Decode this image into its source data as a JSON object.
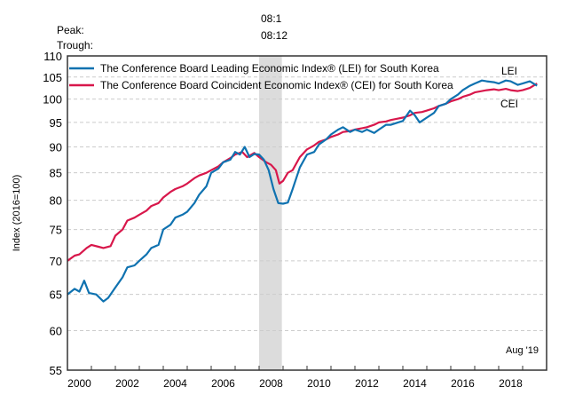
{
  "chart_data": {
    "type": "line",
    "title": "",
    "xlabel": "",
    "ylabel": "Index (2016=100)",
    "y_scale": "log",
    "ylim": [
      55,
      110
    ],
    "xlim": [
      2000,
      2020
    ],
    "grid": true,
    "yticks": [
      55,
      60,
      65,
      70,
      75,
      80,
      85,
      90,
      95,
      100,
      105,
      110
    ],
    "xticks": [
      "2000",
      "2002",
      "2004",
      "2006",
      "2008",
      "2010",
      "2012",
      "2014",
      "2016",
      "2018"
    ],
    "legend_position": "top-left",
    "recession": {
      "peak_label": "Peak:",
      "trough_label": "Trough:",
      "peak": "08:1",
      "trough": "08:12",
      "start": 2008.0,
      "end": 2008.95
    },
    "annotations": {
      "lei_label": "LEI",
      "cei_label": "CEI",
      "date_stamp": "Aug '19"
    },
    "series": [
      {
        "name": "The Conference Board Leading Economic Index® (LEI) for South Korea",
        "short": "LEI",
        "color": "#0f72b0",
        "x": [
          2000.0,
          2000.3,
          2000.5,
          2000.7,
          2000.9,
          2001.2,
          2001.5,
          2001.7,
          2002.0,
          2002.3,
          2002.5,
          2002.8,
          2003.0,
          2003.3,
          2003.5,
          2003.8,
          2004.0,
          2004.3,
          2004.5,
          2004.8,
          2005.0,
          2005.3,
          2005.5,
          2005.8,
          2006.0,
          2006.3,
          2006.5,
          2006.8,
          2007.0,
          2007.2,
          2007.4,
          2007.6,
          2007.8,
          2008.0,
          2008.2,
          2008.4,
          2008.6,
          2008.8,
          2009.0,
          2009.2,
          2009.4,
          2009.7,
          2010.0,
          2010.3,
          2010.5,
          2010.8,
          2011.0,
          2011.3,
          2011.5,
          2011.8,
          2012.0,
          2012.3,
          2012.5,
          2012.8,
          2013.0,
          2013.3,
          2013.5,
          2013.8,
          2014.0,
          2014.3,
          2014.5,
          2014.7,
          2015.0,
          2015.3,
          2015.5,
          2015.8,
          2016.0,
          2016.3,
          2016.5,
          2016.8,
          2017.0,
          2017.3,
          2017.5,
          2017.8,
          2018.0,
          2018.3,
          2018.5,
          2018.8,
          2019.0,
          2019.3,
          2019.6
        ],
        "values": [
          65.0,
          65.8,
          65.4,
          67.0,
          65.2,
          65.0,
          64.0,
          64.5,
          66.0,
          67.5,
          69.0,
          69.3,
          70.0,
          71.0,
          72.0,
          72.5,
          75.0,
          75.8,
          77.0,
          77.5,
          78.0,
          79.5,
          81.0,
          82.5,
          85.0,
          85.8,
          87.0,
          87.5,
          89.0,
          88.5,
          90.0,
          88.0,
          88.6,
          88.5,
          87.5,
          85.5,
          82.0,
          79.5,
          79.4,
          79.6,
          82.0,
          86.0,
          88.5,
          89.0,
          90.5,
          91.5,
          92.5,
          93.5,
          94.0,
          93.0,
          93.5,
          93.0,
          93.5,
          92.8,
          93.5,
          94.5,
          94.5,
          95.0,
          95.3,
          97.5,
          96.5,
          95.0,
          96.0,
          97.0,
          98.5,
          99.0,
          100.0,
          101.0,
          102.0,
          103.0,
          103.5,
          104.2,
          104.0,
          103.8,
          103.5,
          104.2,
          104.0,
          103.2,
          103.5,
          104.0,
          103.0
        ]
      },
      {
        "name": "The Conference Board Coincident Economic Index® (CEI) for South Korea",
        "short": "CEI",
        "color": "#d8174b",
        "x": [
          2000.0,
          2000.3,
          2000.5,
          2000.8,
          2001.0,
          2001.3,
          2001.5,
          2001.8,
          2002.0,
          2002.3,
          2002.5,
          2002.8,
          2003.0,
          2003.3,
          2003.5,
          2003.8,
          2004.0,
          2004.3,
          2004.5,
          2004.8,
          2005.0,
          2005.3,
          2005.5,
          2005.8,
          2006.0,
          2006.3,
          2006.5,
          2006.8,
          2007.0,
          2007.3,
          2007.5,
          2007.8,
          2008.0,
          2008.3,
          2008.5,
          2008.7,
          2008.85,
          2009.0,
          2009.2,
          2009.4,
          2009.7,
          2010.0,
          2010.3,
          2010.5,
          2010.8,
          2011.0,
          2011.3,
          2011.5,
          2011.8,
          2012.0,
          2012.3,
          2012.5,
          2012.8,
          2013.0,
          2013.3,
          2013.5,
          2013.8,
          2014.0,
          2014.3,
          2014.5,
          2014.8,
          2015.0,
          2015.3,
          2015.5,
          2015.8,
          2016.0,
          2016.3,
          2016.5,
          2016.8,
          2017.0,
          2017.3,
          2017.5,
          2017.8,
          2018.0,
          2018.3,
          2018.5,
          2018.8,
          2019.0,
          2019.3,
          2019.6
        ],
        "values": [
          70.0,
          70.8,
          71.0,
          72.0,
          72.5,
          72.2,
          72.0,
          72.3,
          74.0,
          75.0,
          76.5,
          77.0,
          77.5,
          78.2,
          79.0,
          79.5,
          80.5,
          81.5,
          82.0,
          82.5,
          83.0,
          84.0,
          84.5,
          85.0,
          85.5,
          86.2,
          87.0,
          87.8,
          88.5,
          89.0,
          88.0,
          88.8,
          88.0,
          87.0,
          86.5,
          85.5,
          83.0,
          83.5,
          85.0,
          85.5,
          88.0,
          89.5,
          90.3,
          91.0,
          91.5,
          92.0,
          92.5,
          93.0,
          93.2,
          93.5,
          93.8,
          94.0,
          94.5,
          95.0,
          95.2,
          95.5,
          95.8,
          96.0,
          96.5,
          97.0,
          97.2,
          97.5,
          98.0,
          98.5,
          99.0,
          99.5,
          100.0,
          100.5,
          101.0,
          101.5,
          101.8,
          102.0,
          102.2,
          102.0,
          102.3,
          102.0,
          101.8,
          102.0,
          102.5,
          103.5
        ]
      }
    ]
  }
}
